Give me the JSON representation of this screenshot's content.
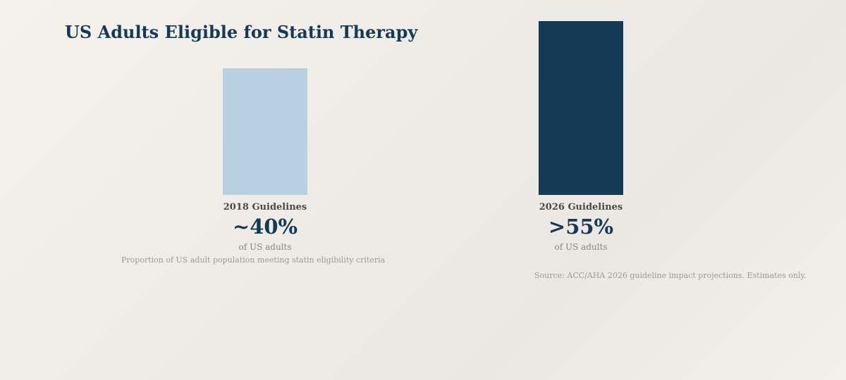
{
  "chart_data": {
    "type": "bar",
    "title": "US Adults Eligible for Statin Therapy",
    "categories": [
      "2018 Guidelines",
      "2026 Guidelines"
    ],
    "values": [
      40,
      55
    ],
    "value_labels": [
      "~40%",
      ">55%"
    ],
    "unit_label": "of US adults",
    "colors": [
      "#b9cfe2",
      "#143a54"
    ],
    "caption": "Proportion of US adult population meeting statin eligibility criteria",
    "source": "Source: ACC/AHA 2026 guideline impact projections. Estimates only.",
    "grid": false,
    "legend": "none"
  }
}
